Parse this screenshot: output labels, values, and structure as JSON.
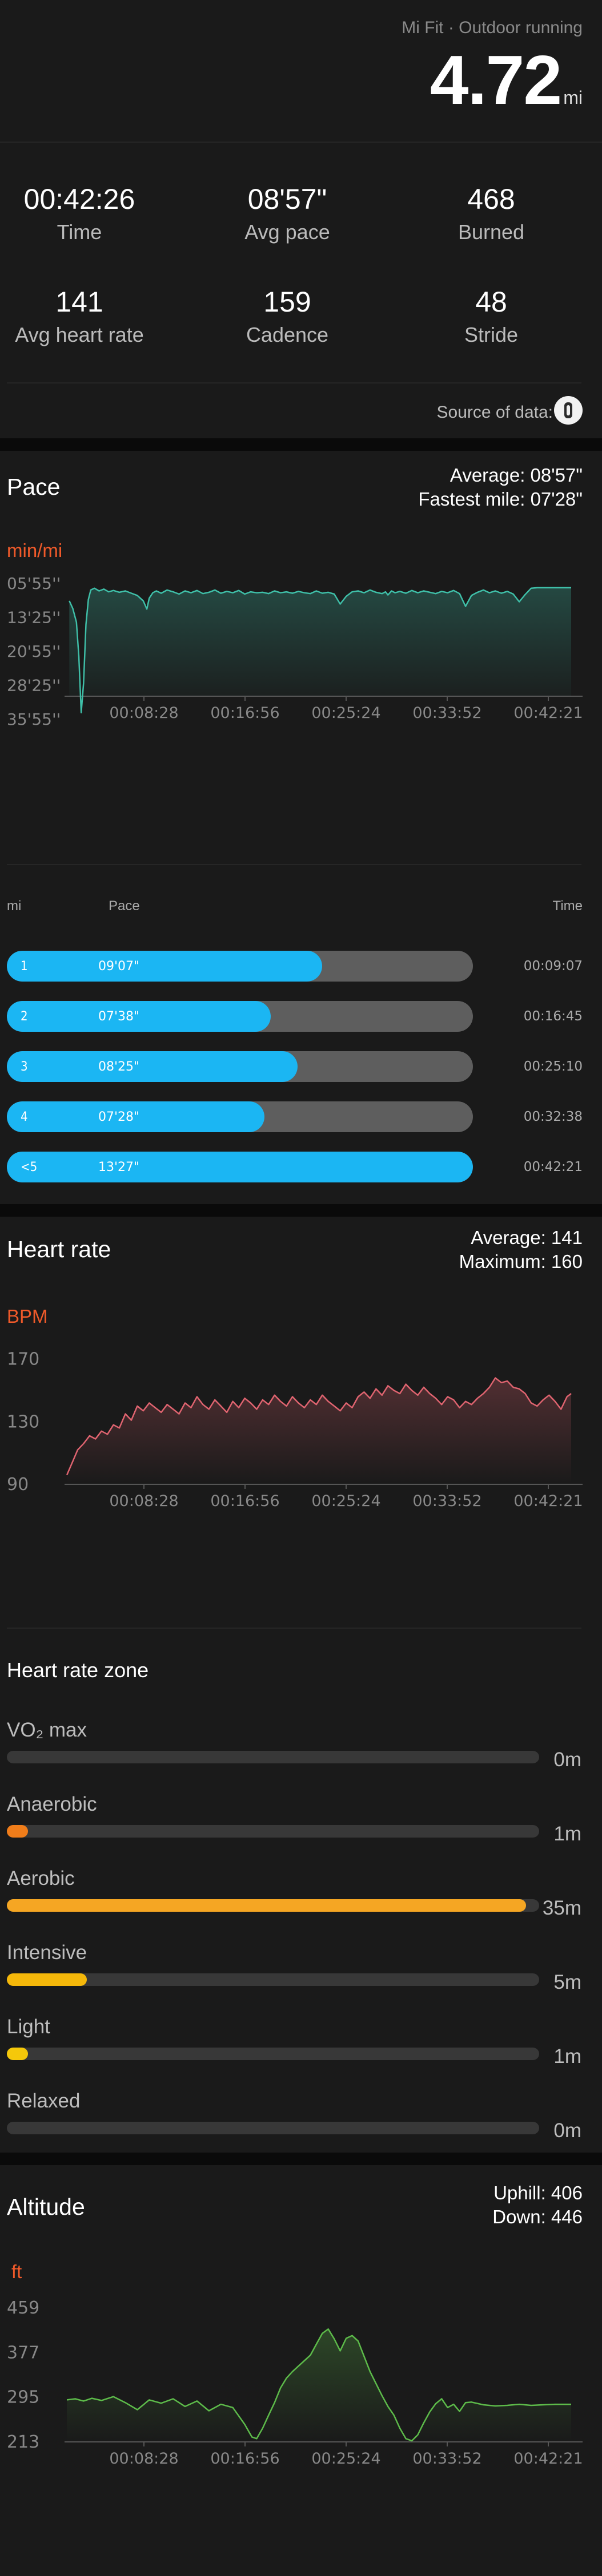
{
  "header": {
    "title": "Mi Fit · Outdoor running",
    "distance": "4.72",
    "distance_unit": "mi"
  },
  "stats": [
    {
      "value": "00:42:26",
      "label": "Time"
    },
    {
      "value": "08'57\"",
      "label": "Avg pace"
    },
    {
      "value": "468",
      "label": "Burned"
    },
    {
      "value": "141",
      "label": "Avg heart rate"
    },
    {
      "value": "159",
      "label": "Cadence"
    },
    {
      "value": "48",
      "label": "Stride"
    }
  ],
  "source": {
    "label": "Source of data:"
  },
  "pace": {
    "title": "Pace",
    "average": "Average: 08'57\"",
    "fastest": "Fastest mile: 07'28\"",
    "unit": "min/mi",
    "table_headers": {
      "mi": "mi",
      "pace": "Pace",
      "time": "Time"
    },
    "splits": [
      {
        "mi": "1",
        "pace": "09'07\"",
        "time": "00:09:07",
        "fraction": 0.676
      },
      {
        "mi": "2",
        "pace": "07'38\"",
        "time": "00:16:45",
        "fraction": 0.566
      },
      {
        "mi": "3",
        "pace": "08'25\"",
        "time": "00:25:10",
        "fraction": 0.624
      },
      {
        "mi": "4",
        "pace": "07'28\"",
        "time": "00:32:38",
        "fraction": 0.553
      },
      {
        "mi": "<5",
        "pace": "13'27\"",
        "time": "00:42:21",
        "fraction": 1.0
      }
    ]
  },
  "heart_rate": {
    "title": "Heart rate",
    "average": "Average: 141",
    "maximum": "Maximum: 160",
    "unit": "BPM",
    "zone_title": "Heart rate zone",
    "zones": [
      {
        "name": "VO₂ max",
        "value": "0m",
        "fraction": 0.0,
        "color": "#f59a23"
      },
      {
        "name": "Anaerobic",
        "value": "1m",
        "fraction": 0.04,
        "color": "#f07d1a"
      },
      {
        "name": "Aerobic",
        "value": "35m",
        "fraction": 0.975,
        "color": "#f5a623"
      },
      {
        "name": "Intensive",
        "value": "5m",
        "fraction": 0.15,
        "color": "#f5b80a"
      },
      {
        "name": "Light",
        "value": "1m",
        "fraction": 0.04,
        "color": "#f5c80a"
      },
      {
        "name": "Relaxed",
        "value": "0m",
        "fraction": 0.0,
        "color": "#f5c80a"
      }
    ]
  },
  "altitude": {
    "title": "Altitude",
    "uphill": "Uphill: 406",
    "down": "Down: 446",
    "unit": "ft"
  },
  "colors": {
    "accent": "#f05a2a",
    "pace_line": "#3fbfa8",
    "hr_line": "#e06470",
    "alt_line": "#5dbb4a",
    "bar_blue": "#1bb6f3"
  },
  "chart_data": [
    {
      "type": "line",
      "title": "Pace",
      "ylabel": "min/mi",
      "x_ticks": [
        "00:08:28",
        "00:16:56",
        "00:25:24",
        "00:33:52",
        "00:42:21"
      ],
      "y_ticks": [
        "05'55''",
        "13'25''",
        "20'55''",
        "28'25''",
        "35'55''"
      ],
      "y_inverted": true,
      "ylim_min": [
        5.9,
        35.9
      ],
      "x_min": [
        0,
        42.35
      ],
      "series": [
        {
          "x": [
            0.3,
            0.6,
            0.9,
            1.1,
            1.3,
            1.5,
            1.7,
            1.9,
            2.1,
            2.4,
            2.8,
            3.2,
            3.6,
            4,
            4.5,
            5,
            5.5,
            6,
            6.5,
            6.8,
            7,
            7.3,
            7.6,
            8,
            8.5,
            9,
            9.5,
            10,
            10.5,
            11,
            11.5,
            12,
            12.5,
            13,
            13.5,
            14,
            14.5,
            15,
            15.5,
            16,
            16.5,
            17,
            17.5,
            18,
            18.5,
            19,
            19.5,
            20,
            20.5,
            21,
            21.5,
            22,
            22.5,
            23,
            23.5,
            24,
            24.5,
            25,
            25.5,
            26,
            26.5,
            26.8,
            27,
            27.3,
            27.6,
            28,
            28.5,
            29,
            29.5,
            30,
            30.5,
            31,
            31.5,
            32,
            32.5,
            33,
            33.5,
            34,
            34.5,
            35,
            35.5,
            36,
            36.5,
            37,
            37.5,
            38,
            38.5,
            39,
            39.5,
            40,
            40.5,
            41,
            41.5,
            42,
            42.35
          ],
          "y": [
            9.8,
            11.5,
            14.5,
            22,
            34.5,
            28,
            15,
            9.5,
            7.4,
            7.0,
            7.6,
            7.2,
            7.8,
            7.5,
            7.9,
            7.6,
            8.1,
            8.6,
            9.8,
            11.6,
            9.2,
            8.0,
            7.6,
            8.1,
            7.4,
            7.8,
            8.3,
            7.6,
            8.0,
            7.5,
            8.2,
            7.9,
            7.4,
            8.1,
            7.7,
            8.0,
            7.5,
            8.3,
            7.8,
            8.0,
            7.9,
            8.2,
            7.6,
            8.0,
            7.8,
            8.1,
            7.7,
            8.0,
            8.2,
            7.6,
            8.1,
            7.9,
            8.3,
            10.5,
            8.8,
            7.8,
            7.6,
            8.0,
            7.4,
            7.9,
            8.2,
            7.8,
            8.5,
            7.6,
            8.0,
            7.7,
            8.1,
            7.5,
            8.0,
            7.6,
            7.9,
            8.2,
            7.7,
            8.0,
            7.5,
            8.2,
            11.0,
            8.6,
            7.9,
            7.4,
            8.0,
            7.6,
            8.1,
            7.7,
            8.3,
            10.0,
            8.4,
            7.0,
            6.9,
            6.9,
            6.9,
            6.9,
            6.9,
            6.9,
            6.9
          ]
        }
      ]
    },
    {
      "type": "line",
      "title": "Heart rate",
      "ylabel": "BPM",
      "x_ticks": [
        "00:08:28",
        "00:16:56",
        "00:25:24",
        "00:33:52",
        "00:42:21"
      ],
      "y_ticks": [
        "170",
        "130",
        "90"
      ],
      "ylim": [
        90,
        175
      ],
      "x_min": [
        0,
        42.35
      ],
      "series": [
        {
          "x": [
            0.1,
            0.5,
            1,
            1.5,
            2,
            2.5,
            3,
            3.5,
            4,
            4.5,
            5,
            5.5,
            6,
            6.5,
            7,
            7.5,
            8,
            8.5,
            9,
            9.5,
            10,
            10.5,
            11,
            11.5,
            12,
            12.5,
            13,
            13.5,
            14,
            14.5,
            15,
            15.5,
            16,
            16.5,
            17,
            17.5,
            18,
            18.5,
            19,
            19.5,
            20,
            20.5,
            21,
            21.5,
            22,
            22.5,
            23,
            23.5,
            24,
            24.5,
            25,
            25.5,
            26,
            26.5,
            27,
            27.5,
            28,
            28.5,
            29,
            29.5,
            30,
            30.5,
            31,
            31.5,
            32,
            32.5,
            33,
            33.5,
            34,
            34.5,
            35,
            35.5,
            36,
            36.5,
            37,
            37.5,
            38,
            38.5,
            39,
            39.5,
            40,
            40.5,
            41,
            41.5,
            42,
            42.35
          ],
          "y": [
            96,
            103,
            112,
            116,
            121,
            119,
            124,
            122,
            128,
            126,
            135,
            131,
            140,
            137,
            142,
            139,
            136,
            141,
            138,
            135,
            142,
            139,
            146,
            141,
            138,
            144,
            140,
            136,
            143,
            139,
            145,
            142,
            138,
            144,
            141,
            147,
            143,
            140,
            146,
            142,
            139,
            144,
            141,
            147,
            143,
            140,
            137,
            142,
            139,
            146,
            149,
            145,
            151,
            147,
            153,
            150,
            148,
            154,
            150,
            147,
            152,
            148,
            145,
            141,
            146,
            144,
            139,
            143,
            141,
            145,
            148,
            152,
            158,
            155,
            156,
            152,
            151,
            148,
            142,
            140,
            144,
            147,
            143,
            138,
            146,
            148
          ]
        }
      ]
    },
    {
      "type": "line",
      "title": "Altitude",
      "ylabel": "ft",
      "x_ticks": [
        "00:08:28",
        "00:16:56",
        "00:25:24",
        "00:33:52",
        "00:42:21"
      ],
      "y_ticks": [
        "459",
        "377",
        "295",
        "213"
      ],
      "ylim": [
        213,
        459
      ],
      "x_min": [
        0,
        42.35
      ],
      "series": [
        {
          "x": [
            0.1,
            0.8,
            1.5,
            2.2,
            3,
            4,
            5,
            6,
            7,
            8,
            9,
            10,
            11,
            12,
            13,
            14,
            15,
            15.6,
            16,
            16.5,
            17,
            17.5,
            18,
            18.5,
            19,
            19.5,
            20,
            20.5,
            21,
            21.5,
            22,
            22.5,
            23,
            23.5,
            24,
            24.5,
            25,
            25.5,
            26,
            26.5,
            27,
            27.5,
            28,
            28.5,
            29,
            29.5,
            30,
            30.5,
            31,
            31.5,
            32,
            32.5,
            33,
            33.5,
            34,
            35,
            36,
            37,
            38,
            39,
            40,
            41,
            42,
            42.35
          ],
          "y": [
            290,
            292,
            288,
            293,
            289,
            296,
            285,
            272,
            290,
            284,
            292,
            278,
            288,
            270,
            282,
            276,
            245,
            222,
            219,
            238,
            262,
            285,
            312,
            330,
            342,
            352,
            362,
            372,
            392,
            412,
            420,
            402,
            380,
            403,
            408,
            398,
            370,
            342,
            320,
            298,
            278,
            262,
            238,
            219,
            215,
            226,
            248,
            268,
            283,
            292,
            276,
            282,
            269,
            285,
            286,
            281,
            279,
            280,
            282,
            280,
            281,
            282,
            282,
            282
          ]
        }
      ]
    }
  ]
}
